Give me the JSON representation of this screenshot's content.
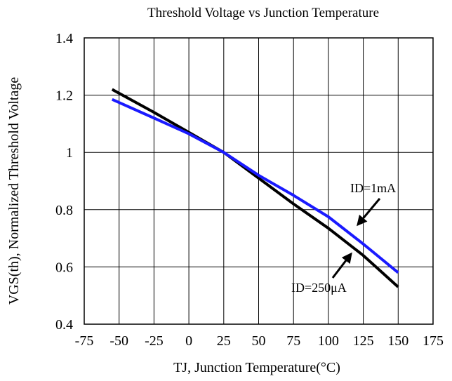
{
  "chart_data": {
    "type": "line",
    "title": "Threshold Voltage vs Junction Temperature",
    "xlabel": "TJ, Junction Temperature(°C)",
    "ylabel": "VGS(th), Normalized Threshold Voltage",
    "xlim": [
      -75,
      175
    ],
    "ylim": [
      0.4,
      1.4
    ],
    "x_ticks": [
      -75,
      -50,
      -25,
      0,
      25,
      50,
      75,
      100,
      125,
      150,
      175
    ],
    "x_tick_labels": [
      "-75",
      "-50",
      "-25",
      "0",
      "25",
      "50",
      "75",
      "100",
      "125",
      "150",
      "175"
    ],
    "y_ticks": [
      0.4,
      0.6,
      0.8,
      1.0,
      1.2,
      1.4
    ],
    "y_tick_labels": [
      "0.4",
      "0.6",
      "0.8",
      "1",
      "1.2",
      "1.4"
    ],
    "grid": true,
    "series": [
      {
        "name": "ID=250μA",
        "color": "#000000",
        "x": [
          -55,
          -25,
          0,
          25,
          50,
          75,
          100,
          125,
          150
        ],
        "y": [
          1.22,
          1.14,
          1.07,
          1.0,
          0.91,
          0.82,
          0.735,
          0.64,
          0.53
        ]
      },
      {
        "name": "ID=1mA",
        "color": "#1a1aff",
        "x": [
          -55,
          -25,
          0,
          25,
          50,
          75,
          100,
          125,
          150
        ],
        "y": [
          1.185,
          1.12,
          1.065,
          1.0,
          0.92,
          0.85,
          0.775,
          0.68,
          0.58
        ]
      }
    ],
    "annotations": [
      {
        "text": "ID=1mA",
        "series": "ID=1mA"
      },
      {
        "text": "ID=250μA",
        "series": "ID=250μA"
      }
    ]
  }
}
